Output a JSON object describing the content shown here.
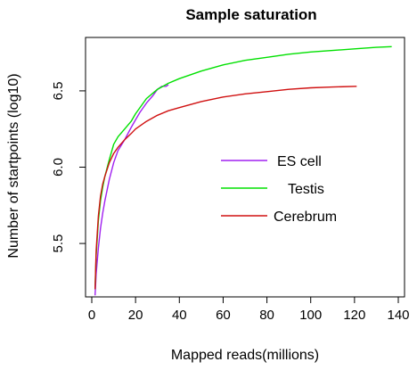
{
  "chart_data": {
    "type": "line",
    "title": "Sample saturation",
    "xlabel": "Mapped reads(millions)",
    "ylabel": "Number of startpoints (log10)",
    "xlim": [
      0,
      140
    ],
    "ylim": [
      5.15,
      6.85
    ],
    "xticks": [
      0,
      20,
      40,
      60,
      80,
      100,
      120,
      140
    ],
    "yticks": [
      5.5,
      6.0,
      6.5
    ],
    "ytick_labels": [
      "5.5",
      "6.0",
      "6.5"
    ],
    "grid": false,
    "legend_position": "center-right",
    "series": [
      {
        "name": "ES cell",
        "color": "#a020f0",
        "x": [
          1.5,
          2,
          3,
          4,
          5,
          6,
          8,
          10,
          12,
          15,
          18,
          20,
          22,
          25,
          28,
          30,
          32,
          34,
          35
        ],
        "y": [
          5.16,
          5.3,
          5.47,
          5.6,
          5.7,
          5.78,
          5.92,
          6.03,
          6.11,
          6.18,
          6.26,
          6.31,
          6.36,
          6.42,
          6.47,
          6.51,
          6.53,
          6.53,
          6.54
        ]
      },
      {
        "name": "Testis",
        "color": "#00e000",
        "x": [
          1.5,
          2,
          3,
          4,
          5,
          6,
          8,
          10,
          12,
          15,
          18,
          20,
          25,
          30,
          35,
          40,
          50,
          60,
          70,
          80,
          90,
          100,
          110,
          120,
          130,
          137
        ],
        "y": [
          5.2,
          5.42,
          5.65,
          5.78,
          5.87,
          5.94,
          6.05,
          6.15,
          6.2,
          6.25,
          6.3,
          6.35,
          6.45,
          6.51,
          6.55,
          6.58,
          6.63,
          6.67,
          6.7,
          6.72,
          6.74,
          6.755,
          6.765,
          6.775,
          6.785,
          6.79
        ]
      },
      {
        "name": "Cerebrum",
        "color": "#d01010",
        "x": [
          1.5,
          2,
          3,
          4,
          5,
          6,
          8,
          10,
          12,
          15,
          18,
          20,
          25,
          30,
          35,
          40,
          50,
          60,
          70,
          80,
          90,
          100,
          110,
          121
        ],
        "y": [
          5.2,
          5.45,
          5.68,
          5.81,
          5.89,
          5.94,
          6.03,
          6.09,
          6.13,
          6.18,
          6.22,
          6.25,
          6.3,
          6.34,
          6.37,
          6.39,
          6.43,
          6.46,
          6.48,
          6.495,
          6.51,
          6.52,
          6.525,
          6.53
        ]
      }
    ]
  }
}
